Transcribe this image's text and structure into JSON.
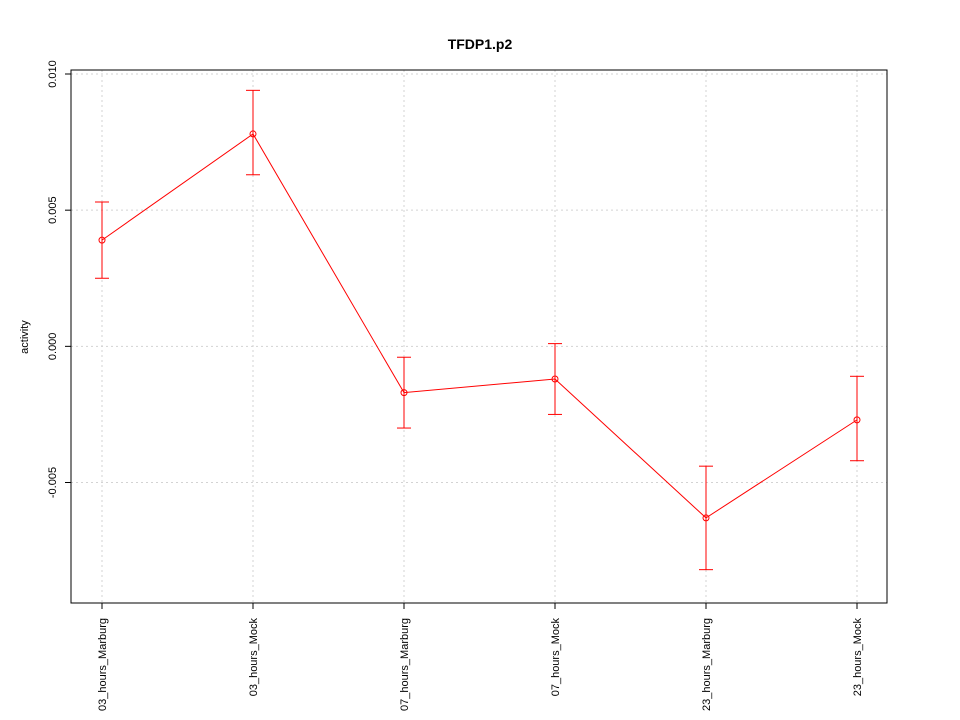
{
  "chart_data": {
    "type": "line",
    "title": "TFDP1.p2",
    "xlabel": "",
    "ylabel": "activity",
    "categories": [
      "03_hours_Marburg",
      "03_hours_Mock",
      "07_hours_Marburg",
      "07_hours_Mock",
      "23_hours_Marburg",
      "23_hours_Mock"
    ],
    "series": [
      {
        "values": [
          0.0039,
          0.0078,
          -0.0017,
          -0.0012,
          -0.0063,
          -0.0027
        ],
        "error_low": [
          0.0025,
          0.0063,
          -0.003,
          -0.0025,
          -0.0082,
          -0.0042
        ],
        "error_high": [
          0.0053,
          0.0094,
          -0.0004,
          0.0001,
          -0.0044,
          -0.0011
        ]
      }
    ],
    "ylim": [
      -0.0088,
      0.01
    ],
    "yticks": [
      -0.005,
      0.0,
      0.005,
      0.01
    ],
    "ytick_labels": [
      "-0.005",
      "0.000",
      "0.005",
      "0.010"
    ],
    "grid": true,
    "colors": {
      "series": "#ff0000",
      "grid": "#d3d3d3",
      "axis": "#000000"
    }
  }
}
